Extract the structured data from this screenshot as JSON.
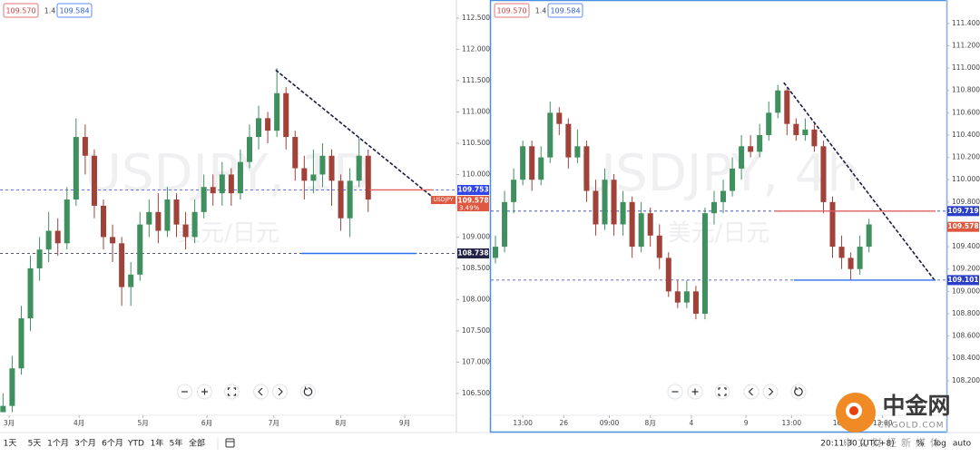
{
  "chart_data": [
    {
      "type": "candlestick",
      "watermark": "USDJPY, 1D",
      "watermark_sub": "美元/日元",
      "header": {
        "bid": "109.570",
        "spread": "1.4",
        "ask": "109.584"
      },
      "x": [
        1,
        4,
        7,
        10,
        13,
        16,
        19,
        22,
        25,
        28,
        31,
        34,
        37,
        40,
        43,
        46,
        49,
        52,
        55,
        58,
        61,
        64,
        67,
        70,
        73,
        76,
        79,
        82,
        85,
        88,
        91,
        94,
        97,
        100,
        103,
        106,
        109,
        112,
        115,
        118,
        121
      ],
      "open": [
        106.2,
        106.3,
        106.9,
        107.7,
        108.5,
        108.8,
        109.1,
        108.9,
        109.6,
        110.6,
        110.3,
        109.5,
        109.0,
        108.9,
        108.2,
        108.4,
        109.2,
        109.4,
        109.1,
        109.6,
        109.2,
        109.0,
        109.4,
        109.8,
        109.7,
        110.0,
        109.7,
        110.2,
        110.6,
        110.9,
        110.7,
        111.3,
        110.6,
        110.1,
        109.9,
        110.0,
        110.3,
        109.9,
        109.3,
        109.9,
        110.3
      ],
      "high": [
        106.5,
        107.1,
        107.9,
        108.7,
        109.0,
        109.4,
        109.3,
        109.8,
        110.9,
        110.8,
        110.4,
        109.6,
        109.2,
        109.0,
        108.6,
        109.4,
        109.6,
        109.7,
        109.8,
        109.7,
        109.4,
        109.6,
        110.0,
        110.0,
        110.2,
        110.1,
        110.4,
        110.8,
        111.1,
        111.0,
        111.7,
        111.4,
        110.7,
        110.3,
        110.4,
        110.5,
        110.4,
        110.0,
        110.1,
        110.6,
        110.4
      ],
      "low": [
        106.2,
        106.2,
        106.8,
        107.5,
        108.3,
        108.6,
        108.7,
        108.8,
        109.5,
        110.0,
        109.3,
        108.8,
        108.6,
        107.9,
        107.9,
        108.3,
        109.0,
        108.9,
        109.0,
        109.0,
        108.8,
        108.9,
        109.3,
        109.5,
        109.5,
        109.5,
        109.6,
        110.1,
        110.4,
        110.5,
        110.6,
        110.4,
        109.9,
        109.6,
        109.7,
        109.8,
        109.5,
        109.1,
        109.0,
        109.8,
        109.4
      ],
      "close": [
        106.3,
        106.9,
        107.7,
        108.5,
        108.8,
        109.1,
        108.9,
        109.6,
        110.6,
        110.3,
        109.5,
        109.0,
        108.9,
        108.2,
        108.4,
        109.2,
        109.4,
        109.1,
        109.6,
        109.2,
        109.0,
        109.4,
        109.8,
        109.7,
        110.0,
        109.7,
        110.2,
        110.6,
        110.9,
        110.7,
        111.3,
        110.6,
        110.1,
        109.9,
        110.0,
        110.3,
        109.9,
        109.3,
        109.9,
        110.3,
        109.6
      ],
      "up_color": "#3f8f5f",
      "down_color": "#a0413a",
      "xlim": [
        0,
        150
      ],
      "xticks": [
        {
          "value": 3,
          "label": "3月"
        },
        {
          "value": 26,
          "label": "4月"
        },
        {
          "value": 47,
          "label": "5月"
        },
        {
          "value": 68,
          "label": "6月"
        },
        {
          "value": 90,
          "label": "7月"
        },
        {
          "value": 112,
          "label": "8月"
        },
        {
          "value": 133,
          "label": "9月"
        }
      ],
      "ylim": [
        106.15,
        112.79
      ],
      "yticks": [
        {
          "value": 106.5,
          "label": "106.500"
        },
        {
          "value": 107,
          "label": "107.000"
        },
        {
          "value": 107.5,
          "label": "107.500"
        },
        {
          "value": 108,
          "label": "108.000"
        },
        {
          "value": 108.5,
          "label": "108.500"
        },
        {
          "value": 109,
          "label": "109.000"
        },
        {
          "value": 110,
          "label": "110.000"
        },
        {
          "value": 110.5,
          "label": "110.500"
        },
        {
          "value": 111,
          "label": "111.000"
        },
        {
          "value": 111.5,
          "label": "111.500"
        },
        {
          "value": 112,
          "label": "112.000"
        },
        {
          "value": 112.5,
          "label": "112.500"
        }
      ],
      "levels": [
        {
          "value": 109.753,
          "color": "#3046e8"
        },
        {
          "value": 108.738,
          "color": "#222244"
        }
      ],
      "segments": [
        {
          "x": [
            90.6,
            144.9
          ],
          "y": [
            111.67,
            109.53
          ],
          "color": "#1c1c40",
          "dash": true
        },
        {
          "x": [
            121.5,
            142.5
          ],
          "y": [
            109.753,
            109.753
          ],
          "color": "#e06060",
          "dash": false
        },
        {
          "x": [
            99,
            137
          ],
          "y": [
            108.738,
            108.738
          ],
          "color": "#2f6ff0",
          "dash": false
        }
      ],
      "last_price": 109.578,
      "symbol": "USDJPY",
      "change": "3.49%"
    },
    {
      "type": "candlestick",
      "watermark": "USDJPY, 4h",
      "watermark_sub": "美元/日元",
      "header": {
        "bid": "109.570",
        "spread": "1.4",
        "ask": "109.584"
      },
      "x": [
        1,
        3,
        5,
        7,
        9,
        11,
        13,
        15,
        17,
        19,
        21,
        23,
        25,
        27,
        29,
        31,
        33,
        35,
        37,
        39,
        41,
        43,
        45,
        47,
        49,
        51,
        53,
        55,
        57,
        59,
        61,
        63,
        65,
        67,
        69,
        71,
        73,
        75,
        77,
        79,
        81,
        83
      ],
      "open": [
        109.3,
        109.4,
        109.8,
        110.0,
        110.3,
        110.0,
        110.2,
        110.6,
        110.5,
        110.2,
        110.3,
        109.9,
        109.6,
        110.0,
        109.6,
        109.8,
        109.4,
        109.7,
        109.5,
        109.3,
        109.0,
        108.9,
        109.0,
        108.8,
        109.7,
        109.8,
        109.9,
        110.1,
        110.3,
        110.25,
        110.4,
        110.6,
        110.8,
        110.5,
        110.4,
        110.45,
        110.3,
        109.8,
        109.4,
        109.3,
        109.2,
        109.4
      ],
      "high": [
        109.5,
        109.9,
        110.1,
        110.35,
        110.35,
        110.3,
        110.7,
        110.65,
        110.55,
        110.45,
        110.35,
        110.0,
        110.1,
        110.05,
        109.9,
        109.85,
        109.8,
        109.75,
        109.6,
        109.35,
        109.1,
        109.1,
        109.05,
        109.75,
        109.9,
        110.0,
        110.2,
        110.4,
        110.4,
        110.5,
        110.7,
        110.85,
        110.82,
        110.55,
        110.55,
        110.5,
        110.35,
        109.85,
        109.5,
        109.35,
        109.5,
        109.65
      ],
      "low": [
        109.25,
        109.35,
        109.7,
        109.95,
        109.9,
        109.95,
        110.15,
        110.4,
        110.1,
        110.15,
        109.8,
        109.5,
        109.55,
        109.5,
        109.5,
        109.3,
        109.35,
        109.4,
        109.2,
        108.95,
        108.85,
        108.85,
        108.75,
        108.75,
        109.6,
        109.7,
        109.85,
        110.0,
        110.2,
        110.2,
        110.35,
        110.55,
        110.4,
        110.35,
        110.35,
        110.25,
        109.7,
        109.3,
        109.2,
        109.1,
        109.15,
        109.35
      ],
      "close": [
        109.4,
        109.8,
        110.0,
        110.3,
        110.0,
        110.2,
        110.6,
        110.5,
        110.2,
        110.3,
        109.9,
        109.6,
        110.0,
        109.6,
        109.8,
        109.4,
        109.7,
        109.5,
        109.3,
        109.0,
        108.9,
        109.0,
        108.8,
        109.7,
        109.8,
        109.9,
        110.1,
        110.3,
        110.25,
        110.4,
        110.6,
        110.8,
        110.5,
        110.4,
        110.45,
        110.3,
        109.8,
        109.4,
        109.3,
        109.2,
        109.4,
        109.6
      ],
      "up_color": "#3f8f5f",
      "down_color": "#a0413a",
      "xlim": [
        0,
        100
      ],
      "xticks": [
        {
          "value": 7,
          "label": "13:00"
        },
        {
          "value": 16,
          "label": "26"
        },
        {
          "value": 26,
          "label": "09:00"
        },
        {
          "value": 35,
          "label": "8月"
        },
        {
          "value": 44,
          "label": "4"
        },
        {
          "value": 56,
          "label": "9"
        },
        {
          "value": 66,
          "label": "13:00"
        },
        {
          "value": 76,
          "label": "16"
        },
        {
          "value": 86,
          "label": "13:00"
        }
      ],
      "ylim": [
        107.89,
        111.61
      ],
      "yticks": [
        {
          "value": 108.2,
          "label": "108.200"
        },
        {
          "value": 108.4,
          "label": "108.400"
        },
        {
          "value": 108.6,
          "label": "108.600"
        },
        {
          "value": 108.8,
          "label": "108.800"
        },
        {
          "value": 109,
          "label": "109.000"
        },
        {
          "value": 109.2,
          "label": "109.200"
        },
        {
          "value": 109.4,
          "label": "109.400"
        },
        {
          "value": 109.8,
          "label": "109.800"
        },
        {
          "value": 110,
          "label": "110.000"
        },
        {
          "value": 110.2,
          "label": "110.200"
        },
        {
          "value": 110.4,
          "label": "110.400"
        },
        {
          "value": 110.6,
          "label": "110.600"
        },
        {
          "value": 110.8,
          "label": "110.800"
        },
        {
          "value": 111,
          "label": "111.000"
        },
        {
          "value": 111.2,
          "label": "111.200"
        },
        {
          "value": 111.4,
          "label": "111.400"
        }
      ],
      "levels": [
        {
          "value": 109.719,
          "color": "#2b3ec8"
        },
        {
          "value": 109.101,
          "color": "#2b3ec8"
        }
      ],
      "segments": [
        {
          "x": [
            64.3,
            97.4
          ],
          "y": [
            110.87,
            109.1
          ],
          "color": "#1c1c40",
          "dash": true
        },
        {
          "x": [
            62.3,
            97.6
          ],
          "y": [
            109.719,
            109.719
          ],
          "color": "#e06060",
          "dash": false
        },
        {
          "x": [
            66.5,
            97.6
          ],
          "y": [
            109.101,
            109.101
          ],
          "color": "#2f6ff0",
          "dash": false
        }
      ],
      "last_price": 109.578
    }
  ],
  "toolbar": {
    "ranges": [
      "1天",
      "5天",
      "1个月",
      "3个月",
      "6个月",
      "YTD",
      "1年",
      "5年",
      "全部"
    ],
    "time": "20:11:30 (UTC+8)",
    "scale_options": [
      "%",
      "log",
      "auto"
    ]
  },
  "logo": {
    "name": "中金网",
    "domain": "CNGOLD.COM",
    "tagline": "中文财经新媒体"
  }
}
